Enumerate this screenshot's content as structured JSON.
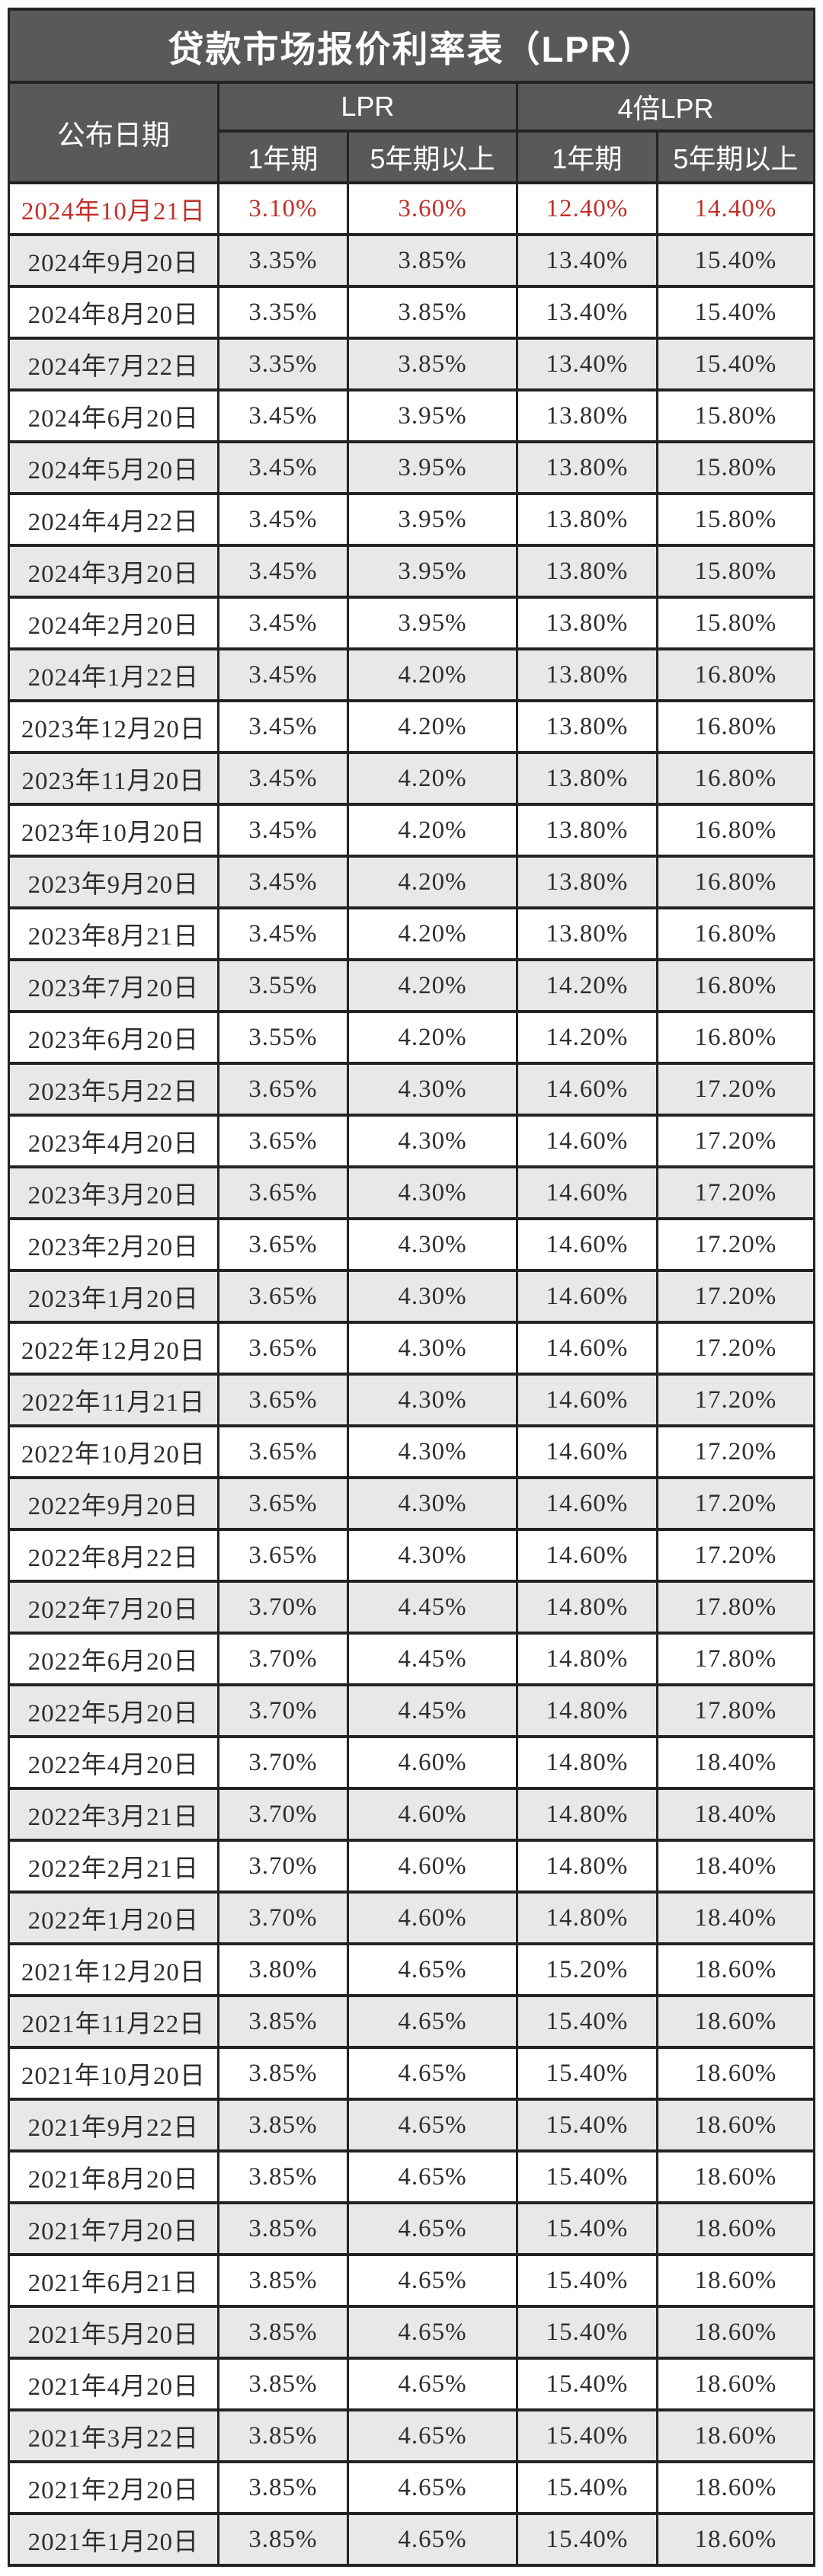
{
  "header": {
    "date_label": "公布日期",
    "lpr_group_label": "LPR",
    "lpr4x_group_label": "4倍LPR",
    "sub_labels": [
      "1年期",
      "5年期以上",
      "1年期",
      "5年期以上"
    ]
  },
  "style": {
    "header_bg": "#58595b",
    "highlight_color": "#c1302b",
    "alt_row_bg": "#e8e8e8",
    "border_color": "#232323"
  },
  "chart_data": {
    "type": "table",
    "title": "贷款市场报价利率表（LPR）",
    "columns": [
      "公布日期",
      "LPR 1年期",
      "LPR 5年期以上",
      "4倍LPR 1年期",
      "4倍LPR 5年期以上"
    ],
    "highlight_row_index": 0,
    "rows": [
      [
        "2024年10月21日",
        "3.10%",
        "3.60%",
        "12.40%",
        "14.40%"
      ],
      [
        "2024年9月20日",
        "3.35%",
        "3.85%",
        "13.40%",
        "15.40%"
      ],
      [
        "2024年8月20日",
        "3.35%",
        "3.85%",
        "13.40%",
        "15.40%"
      ],
      [
        "2024年7月22日",
        "3.35%",
        "3.85%",
        "13.40%",
        "15.40%"
      ],
      [
        "2024年6月20日",
        "3.45%",
        "3.95%",
        "13.80%",
        "15.80%"
      ],
      [
        "2024年5月20日",
        "3.45%",
        "3.95%",
        "13.80%",
        "15.80%"
      ],
      [
        "2024年4月22日",
        "3.45%",
        "3.95%",
        "13.80%",
        "15.80%"
      ],
      [
        "2024年3月20日",
        "3.45%",
        "3.95%",
        "13.80%",
        "15.80%"
      ],
      [
        "2024年2月20日",
        "3.45%",
        "3.95%",
        "13.80%",
        "15.80%"
      ],
      [
        "2024年1月22日",
        "3.45%",
        "4.20%",
        "13.80%",
        "16.80%"
      ],
      [
        "2023年12月20日",
        "3.45%",
        "4.20%",
        "13.80%",
        "16.80%"
      ],
      [
        "2023年11月20日",
        "3.45%",
        "4.20%",
        "13.80%",
        "16.80%"
      ],
      [
        "2023年10月20日",
        "3.45%",
        "4.20%",
        "13.80%",
        "16.80%"
      ],
      [
        "2023年9月20日",
        "3.45%",
        "4.20%",
        "13.80%",
        "16.80%"
      ],
      [
        "2023年8月21日",
        "3.45%",
        "4.20%",
        "13.80%",
        "16.80%"
      ],
      [
        "2023年7月20日",
        "3.55%",
        "4.20%",
        "14.20%",
        "16.80%"
      ],
      [
        "2023年6月20日",
        "3.55%",
        "4.20%",
        "14.20%",
        "16.80%"
      ],
      [
        "2023年5月22日",
        "3.65%",
        "4.30%",
        "14.60%",
        "17.20%"
      ],
      [
        "2023年4月20日",
        "3.65%",
        "4.30%",
        "14.60%",
        "17.20%"
      ],
      [
        "2023年3月20日",
        "3.65%",
        "4.30%",
        "14.60%",
        "17.20%"
      ],
      [
        "2023年2月20日",
        "3.65%",
        "4.30%",
        "14.60%",
        "17.20%"
      ],
      [
        "2023年1月20日",
        "3.65%",
        "4.30%",
        "14.60%",
        "17.20%"
      ],
      [
        "2022年12月20日",
        "3.65%",
        "4.30%",
        "14.60%",
        "17.20%"
      ],
      [
        "2022年11月21日",
        "3.65%",
        "4.30%",
        "14.60%",
        "17.20%"
      ],
      [
        "2022年10月20日",
        "3.65%",
        "4.30%",
        "14.60%",
        "17.20%"
      ],
      [
        "2022年9月20日",
        "3.65%",
        "4.30%",
        "14.60%",
        "17.20%"
      ],
      [
        "2022年8月22日",
        "3.65%",
        "4.30%",
        "14.60%",
        "17.20%"
      ],
      [
        "2022年7月20日",
        "3.70%",
        "4.45%",
        "14.80%",
        "17.80%"
      ],
      [
        "2022年6月20日",
        "3.70%",
        "4.45%",
        "14.80%",
        "17.80%"
      ],
      [
        "2022年5月20日",
        "3.70%",
        "4.45%",
        "14.80%",
        "17.80%"
      ],
      [
        "2022年4月20日",
        "3.70%",
        "4.60%",
        "14.80%",
        "18.40%"
      ],
      [
        "2022年3月21日",
        "3.70%",
        "4.60%",
        "14.80%",
        "18.40%"
      ],
      [
        "2022年2月21日",
        "3.70%",
        "4.60%",
        "14.80%",
        "18.40%"
      ],
      [
        "2022年1月20日",
        "3.70%",
        "4.60%",
        "14.80%",
        "18.40%"
      ],
      [
        "2021年12月20日",
        "3.80%",
        "4.65%",
        "15.20%",
        "18.60%"
      ],
      [
        "2021年11月22日",
        "3.85%",
        "4.65%",
        "15.40%",
        "18.60%"
      ],
      [
        "2021年10月20日",
        "3.85%",
        "4.65%",
        "15.40%",
        "18.60%"
      ],
      [
        "2021年9月22日",
        "3.85%",
        "4.65%",
        "15.40%",
        "18.60%"
      ],
      [
        "2021年8月20日",
        "3.85%",
        "4.65%",
        "15.40%",
        "18.60%"
      ],
      [
        "2021年7月20日",
        "3.85%",
        "4.65%",
        "15.40%",
        "18.60%"
      ],
      [
        "2021年6月21日",
        "3.85%",
        "4.65%",
        "15.40%",
        "18.60%"
      ],
      [
        "2021年5月20日",
        "3.85%",
        "4.65%",
        "15.40%",
        "18.60%"
      ],
      [
        "2021年4月20日",
        "3.85%",
        "4.65%",
        "15.40%",
        "18.60%"
      ],
      [
        "2021年3月22日",
        "3.85%",
        "4.65%",
        "15.40%",
        "18.60%"
      ],
      [
        "2021年2月20日",
        "3.85%",
        "4.65%",
        "15.40%",
        "18.60%"
      ],
      [
        "2021年1月20日",
        "3.85%",
        "4.65%",
        "15.40%",
        "18.60%"
      ]
    ]
  }
}
